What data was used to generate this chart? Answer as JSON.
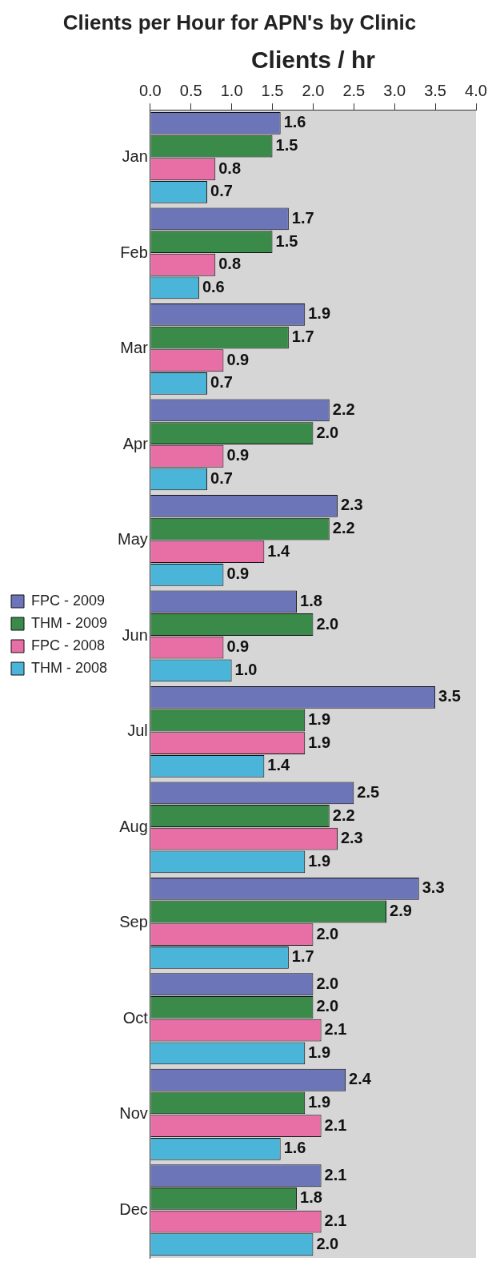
{
  "chart_data": {
    "type": "bar",
    "orientation": "horizontal",
    "title": "Clients per Hour for APN's by Clinic",
    "xlabel": "Clients / hr",
    "categories": [
      "Jan",
      "Feb",
      "Mar",
      "Apr",
      "May",
      "Jun",
      "Jul",
      "Aug",
      "Sep",
      "Oct",
      "Nov",
      "Dec"
    ],
    "series": [
      {
        "name": "FPC - 2009",
        "color": "#6b75b8",
        "values": [
          1.6,
          1.7,
          1.9,
          2.2,
          2.3,
          1.8,
          3.5,
          2.5,
          3.3,
          2.0,
          2.4,
          2.1
        ],
        "value_labels": [
          "1.6",
          "1.7",
          "1.9",
          "2.2",
          "2.3",
          "1.8",
          "3.5",
          "2.5",
          "3.3",
          "2.0",
          "2.4",
          "2.1"
        ]
      },
      {
        "name": "THM - 2009",
        "color": "#3a8a4a",
        "values": [
          1.5,
          1.5,
          1.7,
          2.0,
          2.2,
          2.0,
          1.9,
          2.2,
          2.9,
          2.0,
          1.9,
          1.8
        ],
        "value_labels": [
          "1.5",
          "1.5",
          "1.7",
          "2.0",
          "2.2",
          "2.0",
          "1.9",
          "2.2",
          "2.9",
          "2.0",
          "1.9",
          "1.8"
        ]
      },
      {
        "name": "FPC - 2008",
        "color": "#e86fa6",
        "values": [
          0.8,
          0.8,
          0.9,
          0.9,
          1.4,
          0.9,
          1.9,
          2.3,
          2.0,
          2.1,
          2.1,
          2.1
        ],
        "value_labels": [
          "0.8",
          "0.8",
          "0.9",
          "0.9",
          "1.4",
          "0.9",
          "1.9",
          "2.3",
          "2.0",
          "2.1",
          "2.1",
          "2.1"
        ]
      },
      {
        "name": "THM - 2008",
        "color": "#4ab5d8",
        "values": [
          0.7,
          0.6,
          0.7,
          0.7,
          0.9,
          1.0,
          1.4,
          1.9,
          1.7,
          1.9,
          1.6,
          2.0
        ],
        "value_labels": [
          "0.7",
          "0.6",
          "0.7",
          "0.7",
          "0.9",
          "1.0",
          "1.4",
          "1.9",
          "1.7",
          "1.9",
          "1.6",
          "2.0"
        ]
      }
    ],
    "xlim": [
      0,
      4
    ],
    "xticks": [
      {
        "value": 0,
        "label": "0.0"
      },
      {
        "value": 0.5,
        "label": "0.5"
      },
      {
        "value": 1,
        "label": "1.0"
      },
      {
        "value": 1.5,
        "label": "1.5"
      },
      {
        "value": 2,
        "label": "2.0"
      },
      {
        "value": 2.5,
        "label": "2.5"
      },
      {
        "value": 3,
        "label": "3.0"
      },
      {
        "value": 3.5,
        "label": "3.5"
      },
      {
        "value": 4,
        "label": "4.0"
      }
    ],
    "grid": false,
    "legend": "left"
  }
}
